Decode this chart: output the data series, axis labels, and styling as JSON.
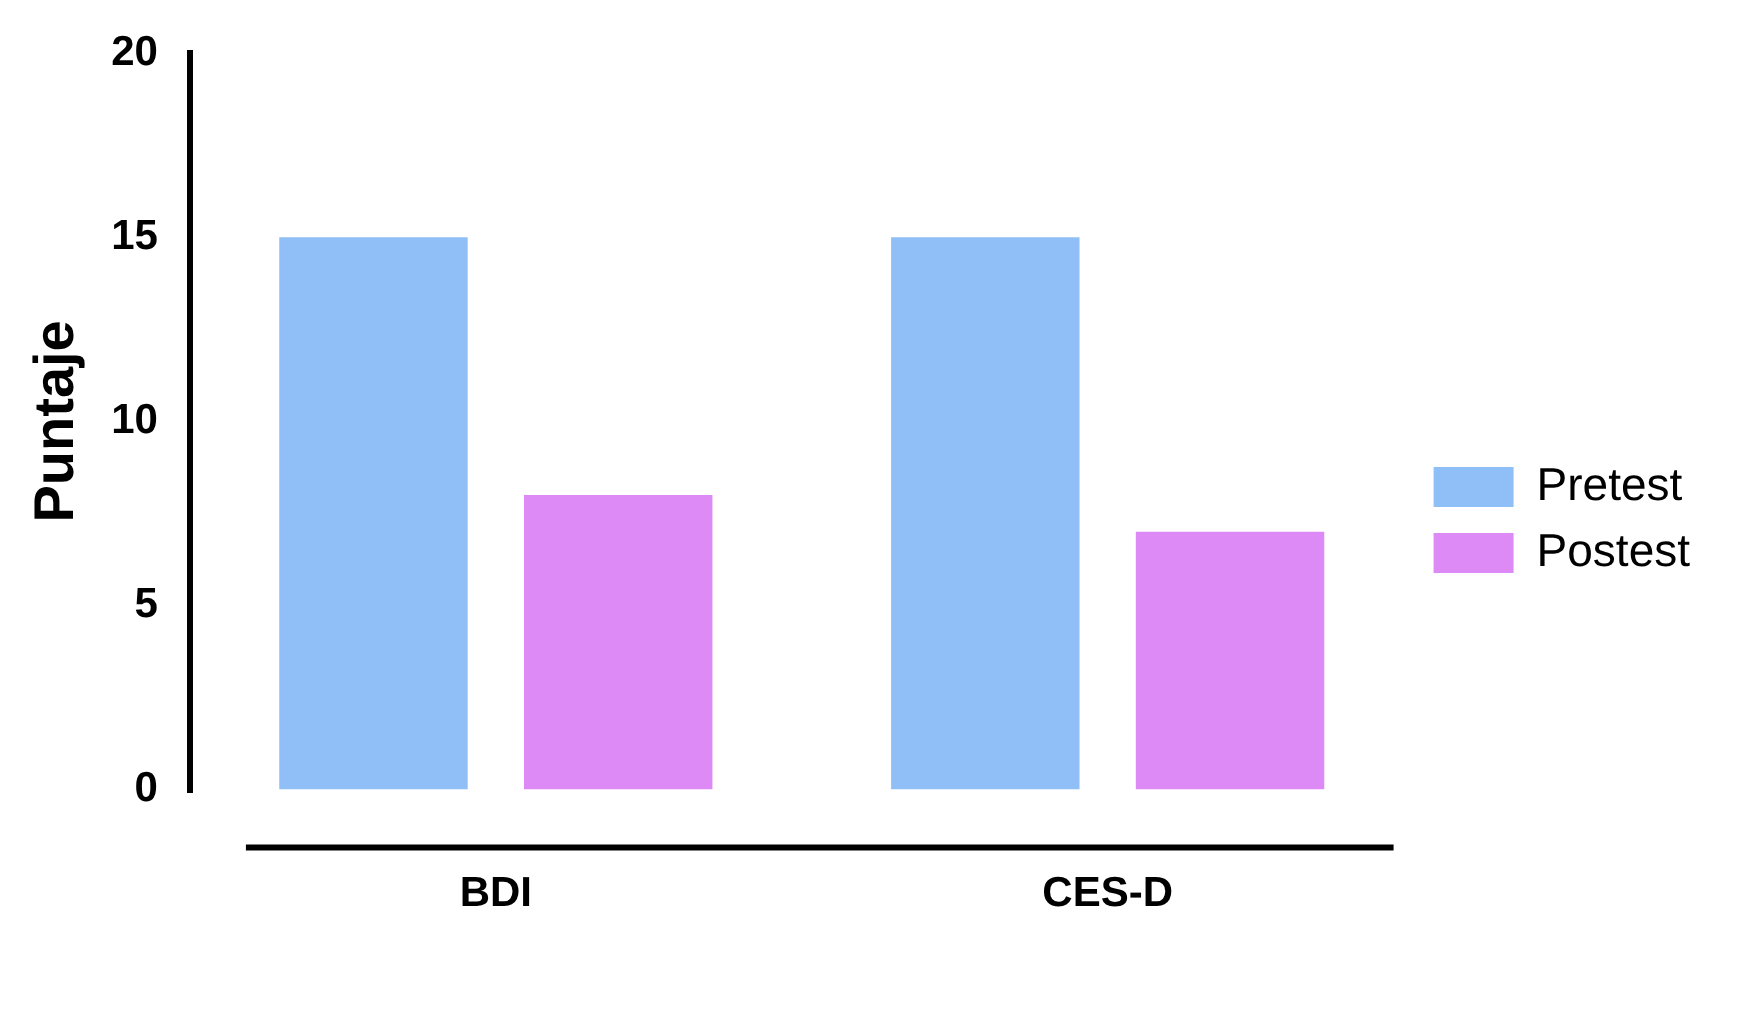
{
  "chart_data": {
    "type": "bar",
    "ylabel": "Puntaje",
    "categories": [
      "BDI",
      "CES-D"
    ],
    "series": [
      {
        "name": "Pretest",
        "color": "#90bff8",
        "values": [
          15,
          15
        ]
      },
      {
        "name": "Postest",
        "color": "#dd8af6",
        "values": [
          8,
          7
        ]
      }
    ],
    "ylim": [
      0,
      20
    ],
    "yticks": [
      0,
      5,
      10,
      15,
      20
    ],
    "grid": false,
    "legend": "right"
  }
}
